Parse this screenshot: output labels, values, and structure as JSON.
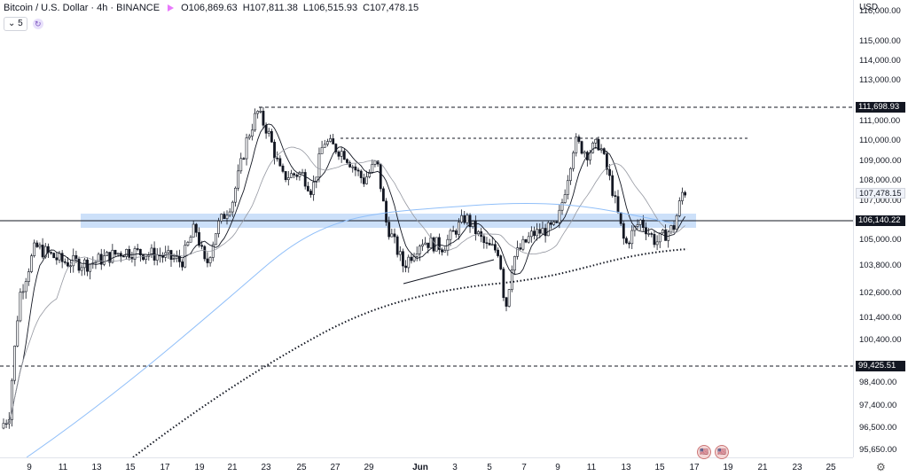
{
  "header": {
    "symbol": "Bitcoin / U.S. Dollar · 4h · BINANCE",
    "open_label": "O",
    "open": "106,869.63",
    "high_label": "H",
    "high": "107,811.38",
    "low_label": "L",
    "low": "106,515.93",
    "close_label": "C",
    "close": "107,478.15",
    "indicator_count": "5",
    "record_icon": "record-icon",
    "sync_icon": "sync-icon"
  },
  "price_axis": {
    "currency": "USD",
    "ticks": [
      "116,000.00",
      "115,000.00",
      "114,000.00",
      "113,000.00",
      "111,000.00",
      "110,000.00",
      "109,000.00",
      "108,000.00",
      "107,000.00",
      "105,000.00",
      "103,800.00",
      "102,600.00",
      "101,400.00",
      "100,400.00",
      "98,400.00",
      "97,400.00",
      "96,500.00",
      "95,650.00"
    ],
    "labels": {
      "resistance_high": "111,698.93",
      "last_price": "107,478.15",
      "horizontal_line": "106,140.22",
      "support": "99,425.51"
    }
  },
  "date_axis": {
    "ticks": [
      "9",
      "11",
      "13",
      "15",
      "17",
      "19",
      "21",
      "23",
      "25",
      "27",
      "29",
      "Jun",
      "3",
      "5",
      "7",
      "9",
      "11",
      "13",
      "15",
      "17",
      "19",
      "21",
      "23",
      "25"
    ]
  },
  "settings_icon": "gear-icon",
  "colors": {
    "up": "#ffffff",
    "down": "#131722",
    "zone": "#bbd5f7",
    "ma_fast": "#131722",
    "ma_slow": "#9598a1",
    "ma_long": "#90bff9",
    "ma_dotted": "#131722"
  },
  "chart_data": {
    "type": "candlestick",
    "title": "Bitcoin / U.S. Dollar · 4h · BINANCE",
    "ylim": [
      95650,
      116500
    ],
    "levels": [
      111698.93,
      110200,
      106140.22,
      99425.51
    ],
    "zone": [
      105850,
      106450
    ],
    "anchors": [
      {
        "x": 0,
        "price": 96500
      },
      {
        "x": 10,
        "price": 97000
      },
      {
        "x": 22,
        "price": 102500
      },
      {
        "x": 40,
        "price": 104700
      },
      {
        "x": 70,
        "price": 104000
      },
      {
        "x": 100,
        "price": 103900
      },
      {
        "x": 140,
        "price": 104500
      },
      {
        "x": 180,
        "price": 104300
      },
      {
        "x": 205,
        "price": 104000
      },
      {
        "x": 220,
        "price": 105700
      },
      {
        "x": 232,
        "price": 103700
      },
      {
        "x": 245,
        "price": 105700
      },
      {
        "x": 262,
        "price": 107000
      },
      {
        "x": 278,
        "price": 110000
      },
      {
        "x": 290,
        "price": 111500
      },
      {
        "x": 302,
        "price": 110500
      },
      {
        "x": 318,
        "price": 108200
      },
      {
        "x": 340,
        "price": 108400
      },
      {
        "x": 352,
        "price": 107500
      },
      {
        "x": 365,
        "price": 110000
      },
      {
        "x": 388,
        "price": 109400
      },
      {
        "x": 410,
        "price": 108000
      },
      {
        "x": 425,
        "price": 109000
      },
      {
        "x": 436,
        "price": 105800
      },
      {
        "x": 455,
        "price": 103800
      },
      {
        "x": 475,
        "price": 105000
      },
      {
        "x": 500,
        "price": 104700
      },
      {
        "x": 525,
        "price": 106200
      },
      {
        "x": 548,
        "price": 104700
      },
      {
        "x": 563,
        "price": 104500
      },
      {
        "x": 570,
        "price": 101800
      },
      {
        "x": 578,
        "price": 104100
      },
      {
        "x": 600,
        "price": 105300
      },
      {
        "x": 628,
        "price": 105700
      },
      {
        "x": 640,
        "price": 108200
      },
      {
        "x": 648,
        "price": 110000
      },
      {
        "x": 662,
        "price": 109400
      },
      {
        "x": 676,
        "price": 109900
      },
      {
        "x": 690,
        "price": 107700
      },
      {
        "x": 705,
        "price": 104700
      },
      {
        "x": 712,
        "price": 105300
      },
      {
        "x": 722,
        "price": 106000
      },
      {
        "x": 740,
        "price": 104900
      },
      {
        "x": 760,
        "price": 105700
      },
      {
        "x": 770,
        "price": 107500
      },
      {
        "x": 774,
        "price": 107478
      }
    ]
  }
}
